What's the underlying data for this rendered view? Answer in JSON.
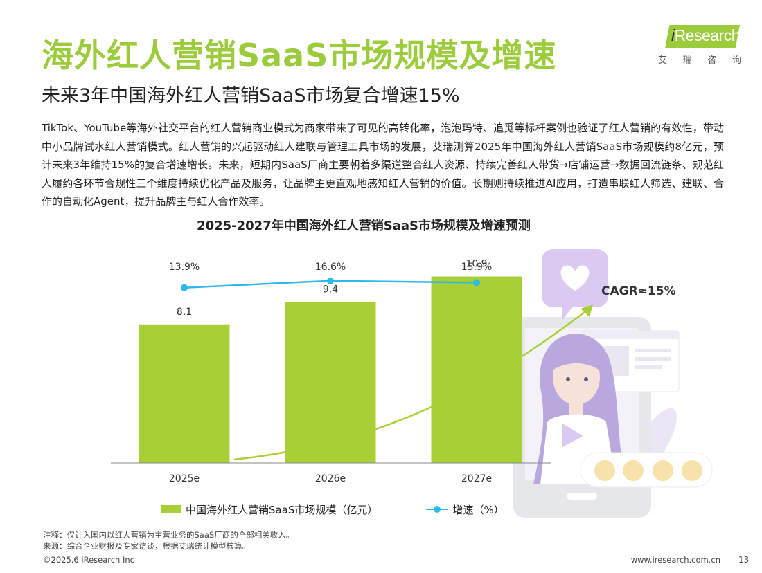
{
  "header": {
    "title": "海外红人营销SaaS市场规模及增速",
    "subtitle": "未来3年中国海外红人营销SaaS市场复合增速15%"
  },
  "logo": {
    "prefix": "i",
    "name": "Research",
    "cn_chars": [
      "艾",
      "瑞",
      "咨",
      "询"
    ]
  },
  "body_text": "TikTok、YouTube等海外社交平台的红人营销商业模式为商家带来了可见的高转化率，泡泡玛特、追觅等标杆案例也验证了红人营销的有效性，带动中小品牌试水红人营销模式。红人营销的兴起驱动红人建联与管理工具市场的发展，艾瑞测算2025年中国海外红人营销SaaS市场规模约8亿元，预计未来3年维持15%的复合增速增长。未来，短期内SaaS厂商主要朝着多渠道整合红人资源、持续完善红人带货→店铺运营→数据回流链条、规范红人履约各环节合规性三个维度持续优化产品及服务，让品牌主更直观地感知红人营销的价值。长期则持续推进AI应用，打造串联红人筛选、建联、合作的自动化Agent，提升品牌主与红人合作效率。",
  "chart_data": {
    "type": "bar",
    "title": "2025-2027年中国海外红人营销SaaS市场规模及增速预测",
    "categories": [
      "2025e",
      "2026e",
      "2027e"
    ],
    "series": [
      {
        "name": "中国海外红人营销SaaS市场规模（亿元）",
        "type": "bar",
        "values": [
          8.1,
          9.4,
          10.9
        ],
        "labels": [
          "8.1",
          "9.4",
          "10.9"
        ],
        "color": "#a8cf36"
      },
      {
        "name": "增速（%）",
        "type": "line",
        "values": [
          13.9,
          16.6,
          15.9
        ],
        "labels": [
          "13.9%",
          "16.6%",
          "15.9%"
        ],
        "color": "#2fb8ea"
      }
    ],
    "bar_ylim": [
      0,
      12.5
    ],
    "line_ylim": [
      0,
      30
    ],
    "annotation": "CAGR≈15%",
    "legend_position": "bottom"
  },
  "notes": {
    "note": "注释：仅计入国内以红人营销为主营业务的SaaS厂商的全部相关收入。",
    "source": "来源：综合企业财报及专家访谈，根据艾瑞统计模型核算。"
  },
  "footer": {
    "copyright": "©2025.6 iResearch Inc",
    "website": "www.iresearch.com.cn",
    "page": "13"
  },
  "colors": {
    "brand_green": "#9ccb3c",
    "bar": "#a8cf36",
    "line": "#2fb8ea",
    "illustration_purple": "#d9c8f1"
  }
}
